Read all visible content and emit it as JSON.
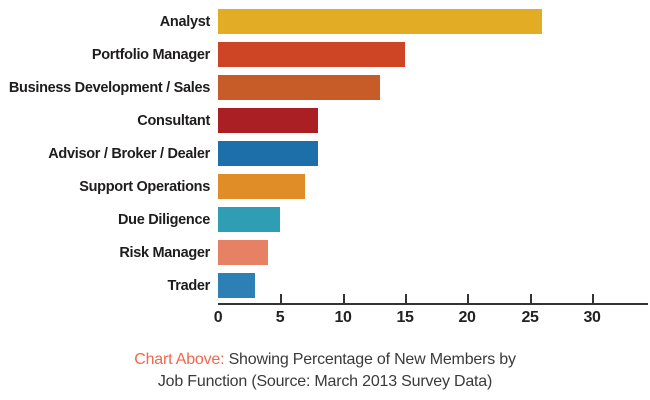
{
  "chart_data": {
    "type": "bar",
    "orientation": "horizontal",
    "title": "",
    "categories": [
      "Analyst",
      "Portfolio Manager",
      "Business Development / Sales",
      "Consultant",
      "Advisor / Broker / Dealer",
      "Support Operations",
      "Due Diligence",
      "Risk Manager",
      "Trader"
    ],
    "values": [
      26,
      15,
      13,
      8,
      8,
      7,
      5,
      4,
      3
    ],
    "bar_colors": [
      "#E2AC24",
      "#CE4526",
      "#C75C28",
      "#A91F24",
      "#1C6FA8",
      "#E08D28",
      "#2F9DB3",
      "#E68163",
      "#2C80B5"
    ],
    "xlabel": "",
    "ylabel": "",
    "x_ticks": [
      0,
      5,
      10,
      15,
      20,
      25,
      30
    ],
    "xlim": [
      0,
      34.5
    ],
    "grid": false,
    "legend": false,
    "axis_color": "#333333",
    "label_color": "#1F1C1D"
  },
  "caption": {
    "prefix": "Chart Above:",
    "line1_rest": " Showing Percentage of New Members by",
    "line2": "Job Function (Source: March 2013 Survey Data)",
    "prefix_color": "#F2674B",
    "text_color": "#3A3A3A"
  }
}
